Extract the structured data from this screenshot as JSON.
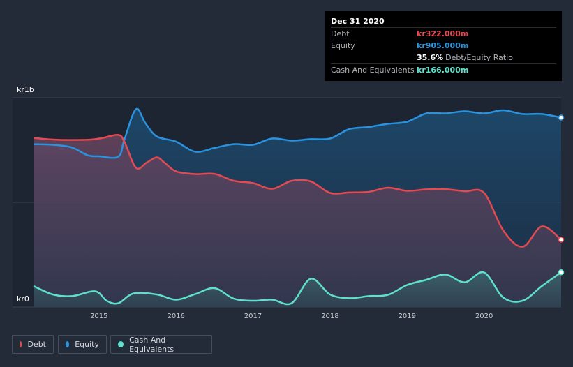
{
  "tooltip": {
    "date": "Dec 31 2020",
    "rows": [
      {
        "label": "Debt",
        "value": "kr322.000m",
        "color": "#e44a52"
      },
      {
        "label": "Equity",
        "value": "kr905.000m",
        "color": "#2a93e0"
      },
      {
        "label": "",
        "value": "35.6%",
        "suffix": "Debt/Equity Ratio",
        "color": "#ffffff"
      },
      {
        "label": "Cash And Equivalents",
        "value": "kr166.000m",
        "color": "#5ee0cc"
      }
    ]
  },
  "legend": [
    {
      "label": "Debt",
      "color": "#e44a52"
    },
    {
      "label": "Equity",
      "color": "#2a93e0"
    },
    {
      "label": "Cash And Equivalents",
      "color": "#5ee0cc"
    }
  ],
  "chart_data": {
    "type": "area",
    "title": "",
    "xlabel": "",
    "ylabel": "",
    "y_top_label": "kr1b",
    "y_bottom_label": "kr0",
    "ylim": [
      0,
      1000
    ],
    "xlim": [
      2014.15,
      2021.0
    ],
    "x_ticks": [
      "2015",
      "2016",
      "2017",
      "2018",
      "2019",
      "2020"
    ],
    "x_tick_values": [
      2015,
      2016,
      2017,
      2018,
      2019,
      2020
    ],
    "series": [
      {
        "name": "Debt",
        "color": "#e44a52",
        "points": [
          [
            2014.15,
            808
          ],
          [
            2014.4,
            800
          ],
          [
            2014.65,
            798
          ],
          [
            2014.9,
            800
          ],
          [
            2015.05,
            808
          ],
          [
            2015.25,
            822
          ],
          [
            2015.33,
            790
          ],
          [
            2015.48,
            665
          ],
          [
            2015.62,
            690
          ],
          [
            2015.75,
            715
          ],
          [
            2015.85,
            690
          ],
          [
            2016.0,
            648
          ],
          [
            2016.25,
            635
          ],
          [
            2016.5,
            636
          ],
          [
            2016.75,
            603
          ],
          [
            2017.0,
            592
          ],
          [
            2017.25,
            565
          ],
          [
            2017.5,
            603
          ],
          [
            2017.75,
            600
          ],
          [
            2018.0,
            545
          ],
          [
            2018.25,
            547
          ],
          [
            2018.5,
            550
          ],
          [
            2018.75,
            570
          ],
          [
            2019.0,
            555
          ],
          [
            2019.25,
            562
          ],
          [
            2019.5,
            563
          ],
          [
            2019.75,
            553
          ],
          [
            2020.0,
            545
          ],
          [
            2020.25,
            365
          ],
          [
            2020.5,
            288
          ],
          [
            2020.75,
            385
          ],
          [
            2021.0,
            322
          ]
        ]
      },
      {
        "name": "Equity",
        "color": "#2a93e0",
        "points": [
          [
            2014.15,
            778
          ],
          [
            2014.4,
            775
          ],
          [
            2014.65,
            762
          ],
          [
            2014.85,
            725
          ],
          [
            2015.0,
            720
          ],
          [
            2015.25,
            718
          ],
          [
            2015.33,
            800
          ],
          [
            2015.48,
            945
          ],
          [
            2015.6,
            880
          ],
          [
            2015.75,
            815
          ],
          [
            2016.0,
            790
          ],
          [
            2016.25,
            742
          ],
          [
            2016.5,
            760
          ],
          [
            2016.75,
            778
          ],
          [
            2017.0,
            775
          ],
          [
            2017.25,
            805
          ],
          [
            2017.5,
            795
          ],
          [
            2017.75,
            802
          ],
          [
            2018.0,
            805
          ],
          [
            2018.25,
            850
          ],
          [
            2018.5,
            860
          ],
          [
            2018.75,
            875
          ],
          [
            2019.0,
            885
          ],
          [
            2019.25,
            925
          ],
          [
            2019.5,
            925
          ],
          [
            2019.75,
            935
          ],
          [
            2020.0,
            925
          ],
          [
            2020.25,
            940
          ],
          [
            2020.5,
            922
          ],
          [
            2020.75,
            922
          ],
          [
            2021.0,
            905
          ]
        ]
      },
      {
        "name": "Cash And Equivalents",
        "color": "#5ee0cc",
        "points": [
          [
            2014.15,
            100
          ],
          [
            2014.4,
            60
          ],
          [
            2014.65,
            52
          ],
          [
            2014.95,
            75
          ],
          [
            2015.1,
            30
          ],
          [
            2015.25,
            18
          ],
          [
            2015.45,
            65
          ],
          [
            2015.75,
            60
          ],
          [
            2016.0,
            35
          ],
          [
            2016.25,
            62
          ],
          [
            2016.5,
            90
          ],
          [
            2016.75,
            40
          ],
          [
            2017.0,
            30
          ],
          [
            2017.25,
            35
          ],
          [
            2017.5,
            18
          ],
          [
            2017.75,
            135
          ],
          [
            2018.0,
            60
          ],
          [
            2018.25,
            42
          ],
          [
            2018.5,
            52
          ],
          [
            2018.75,
            58
          ],
          [
            2019.0,
            105
          ],
          [
            2019.25,
            130
          ],
          [
            2019.5,
            155
          ],
          [
            2019.75,
            118
          ],
          [
            2020.0,
            165
          ],
          [
            2020.25,
            45
          ],
          [
            2020.5,
            30
          ],
          [
            2020.75,
            100
          ],
          [
            2021.0,
            166
          ]
        ]
      }
    ]
  }
}
